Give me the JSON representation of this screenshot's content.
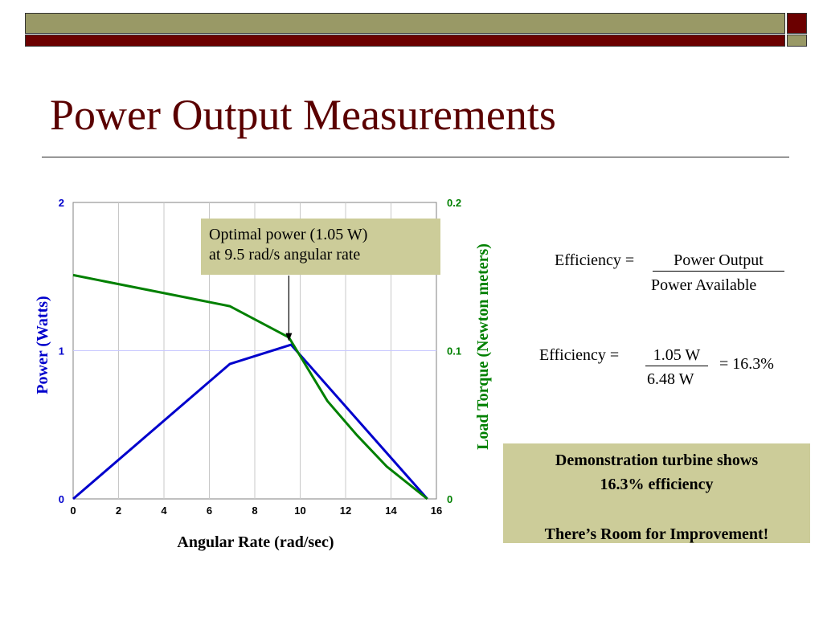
{
  "slide": {
    "title": "Power Output Measurements",
    "theme_colors": {
      "olive": "#999966",
      "maroon": "#6b0000",
      "callout_fill": "#cccc99"
    }
  },
  "callout": {
    "line1": "Optimal power (1.05 W)",
    "line2": "at 9.5 rad/s angular rate"
  },
  "formula1": {
    "lhs": "Efficiency =",
    "numerator": "Power Output",
    "denominator": "Power Available"
  },
  "formula2": {
    "lhs": "Efficiency =",
    "numerator": "1.05 W",
    "denominator": "6.48 W",
    "result": "= 16.3%"
  },
  "summary": {
    "line1": "Demonstration turbine shows",
    "line2": "16.3% efficiency",
    "line3": "There’s Room for Improvement!"
  },
  "chart_data": {
    "type": "line",
    "xlabel": "Angular Rate (rad/sec)",
    "ylabel": "Power (Watts)",
    "y2label": "Load Torque (Newton meters)",
    "xlim": [
      0,
      16
    ],
    "ylim": [
      0,
      2
    ],
    "y2lim": [
      0,
      0.2
    ],
    "x_ticks": [
      "0",
      "2",
      "4",
      "6",
      "8",
      "10",
      "12",
      "14",
      "16"
    ],
    "y_ticks": [
      "0",
      "1",
      "2"
    ],
    "y2_ticks": [
      "0",
      "0.1",
      "0.2"
    ],
    "grid": true,
    "series": [
      {
        "axis": "left",
        "color": "#0000cc",
        "x": [
          0,
          6.9,
          9.6,
          15.6
        ],
        "y": [
          0,
          0.91,
          1.04,
          0
        ]
      },
      {
        "axis": "right",
        "color": "#008000",
        "x": [
          0,
          6.9,
          9.5,
          11.2,
          12.5,
          13.8,
          15.6
        ],
        "y": [
          0.151,
          0.13,
          0.109,
          0.066,
          0.043,
          0.022,
          0
        ]
      }
    ],
    "annotation": {
      "x": 9.5,
      "y": 1.07
    }
  }
}
